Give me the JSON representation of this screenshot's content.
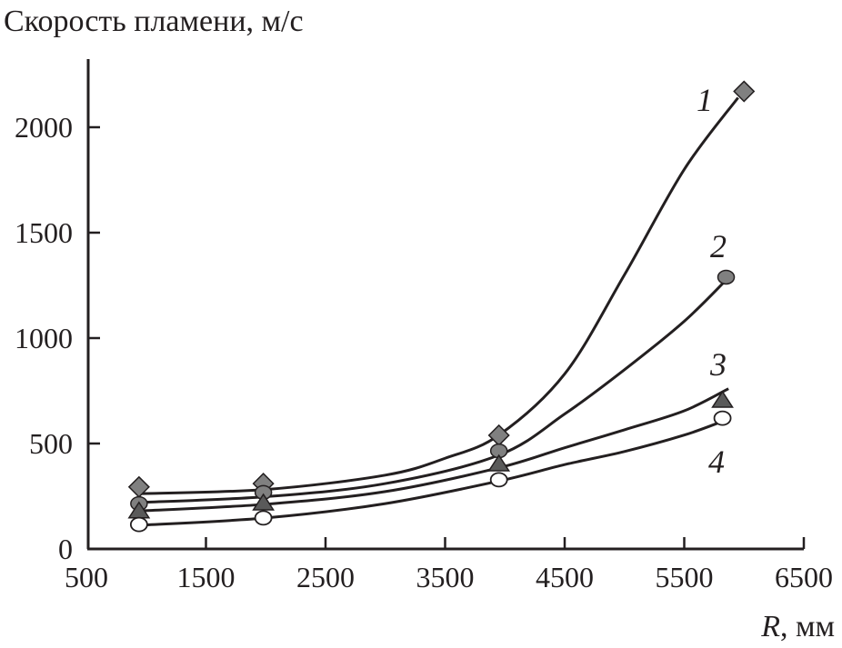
{
  "chart_data": {
    "type": "line",
    "title": "Скорость пламени, м/с",
    "xlabel_var": "R",
    "xlabel_unit": ", мм",
    "ylabel": "",
    "xlim": [
      500,
      6500
    ],
    "ylim": [
      0,
      2200
    ],
    "x_ticks": [
      "500",
      "1500",
      "2500",
      "3500",
      "4500",
      "5500",
      "6500"
    ],
    "y_ticks": [
      "0",
      "500",
      "1000",
      "1500",
      "2000"
    ],
    "grid": false,
    "colors": {
      "line": "#231f20",
      "marker_fill": "#808080",
      "triangle_fill": "#5a5a5a",
      "open_fill": "#ffffff"
    },
    "series": [
      {
        "label": "1",
        "marker": "diamond",
        "points": [
          [
            940,
            294
          ],
          [
            1980,
            310
          ],
          [
            3950,
            539
          ],
          [
            6000,
            2170
          ]
        ],
        "curve": [
          [
            940,
            262
          ],
          [
            2000,
            282
          ],
          [
            3000,
            350
          ],
          [
            3500,
            430
          ],
          [
            3950,
            540
          ],
          [
            4500,
            830
          ],
          [
            5000,
            1300
          ],
          [
            5500,
            1800
          ],
          [
            5950,
            2140
          ]
        ]
      },
      {
        "label": "2",
        "marker": "circle",
        "points": [
          [
            940,
            215
          ],
          [
            1980,
            268
          ],
          [
            3950,
            465
          ],
          [
            5850,
            1289
          ]
        ],
        "curve": [
          [
            940,
            220
          ],
          [
            2000,
            248
          ],
          [
            3000,
            310
          ],
          [
            3950,
            445
          ],
          [
            4500,
            640
          ],
          [
            5000,
            850
          ],
          [
            5500,
            1080
          ],
          [
            5850,
            1275
          ]
        ]
      },
      {
        "label": "3",
        "marker": "triangle",
        "points": [
          [
            940,
            182
          ],
          [
            1980,
            220
          ],
          [
            3950,
            405
          ],
          [
            5820,
            707
          ]
        ],
        "curve": [
          [
            940,
            180
          ],
          [
            2000,
            212
          ],
          [
            3000,
            272
          ],
          [
            3950,
            385
          ],
          [
            4500,
            480
          ],
          [
            5000,
            565
          ],
          [
            5500,
            655
          ],
          [
            5870,
            760
          ]
        ]
      },
      {
        "label": "4",
        "marker": "open-circle",
        "points": [
          [
            940,
            116
          ],
          [
            1980,
            147
          ],
          [
            3950,
            328
          ],
          [
            5820,
            620
          ]
        ],
        "curve": [
          [
            940,
            112
          ],
          [
            2000,
            147
          ],
          [
            3000,
            215
          ],
          [
            3950,
            322
          ],
          [
            4500,
            400
          ],
          [
            5000,
            462
          ],
          [
            5500,
            540
          ],
          [
            5820,
            605
          ]
        ]
      }
    ]
  }
}
